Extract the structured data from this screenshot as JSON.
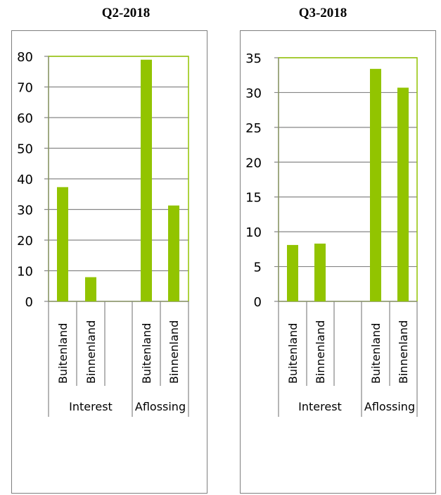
{
  "chart_data": [
    {
      "type": "bar",
      "title": "Q2-2018",
      "groups": [
        "Interest",
        "Aflossing"
      ],
      "categories": [
        "Buitenland",
        "Binnenland",
        "Buitenland",
        "Binnenland"
      ],
      "series": [
        {
          "values": [
            37.3,
            7.9,
            78.9,
            31.3
          ]
        }
      ],
      "ylim": [
        0,
        80
      ],
      "yticks": [
        0,
        10,
        20,
        30,
        40,
        50,
        60,
        70,
        80
      ],
      "grid": true,
      "bar_color": "#92c400",
      "plot_border_color": "#92c400"
    },
    {
      "type": "bar",
      "title": "Q3-2018",
      "groups": [
        "Interest",
        "Aflossing"
      ],
      "categories": [
        "Buitenland",
        "Binnenland",
        "Buitenland",
        "Binnenland"
      ],
      "series": [
        {
          "values": [
            8.1,
            8.3,
            33.4,
            30.7
          ]
        }
      ],
      "ylim": [
        0,
        35
      ],
      "yticks": [
        0,
        5,
        10,
        15,
        20,
        25,
        30,
        35
      ],
      "grid": true,
      "bar_color": "#92c400",
      "plot_border_color": "#92c400"
    }
  ]
}
